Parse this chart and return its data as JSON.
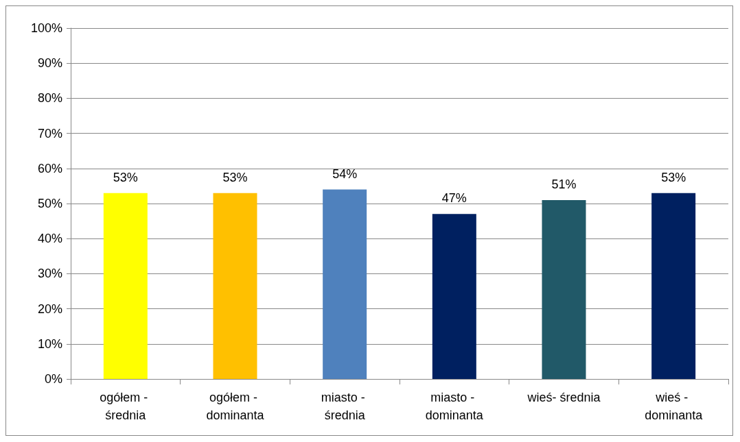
{
  "chart_data": {
    "type": "bar",
    "categories": [
      "ogółem - średnia",
      "ogółem - dominanta",
      "miasto - średnia",
      "miasto - dominanta",
      "wieś- średnia",
      "wieś - dominanta"
    ],
    "values": [
      53,
      53,
      54,
      47,
      51,
      53
    ],
    "colors": [
      "#ffff00",
      "#ffc000",
      "#4f81bd",
      "#002060",
      "#215968",
      "#002060"
    ],
    "value_labels": [
      "53%",
      "53%",
      "54%",
      "47%",
      "51%",
      "53%"
    ],
    "ylim": [
      0,
      100
    ],
    "yticks": [
      {
        "value": 0,
        "label": "0%"
      },
      {
        "value": 10,
        "label": "10%"
      },
      {
        "value": 20,
        "label": "20%"
      },
      {
        "value": 30,
        "label": "30%"
      },
      {
        "value": 40,
        "label": "40%"
      },
      {
        "value": 50,
        "label": "50%"
      },
      {
        "value": 60,
        "label": "60%"
      },
      {
        "value": 70,
        "label": "70%"
      },
      {
        "value": 80,
        "label": "80%"
      },
      {
        "value": 90,
        "label": "90%"
      },
      {
        "value": 100,
        "label": "100%"
      }
    ],
    "grid": "y"
  }
}
